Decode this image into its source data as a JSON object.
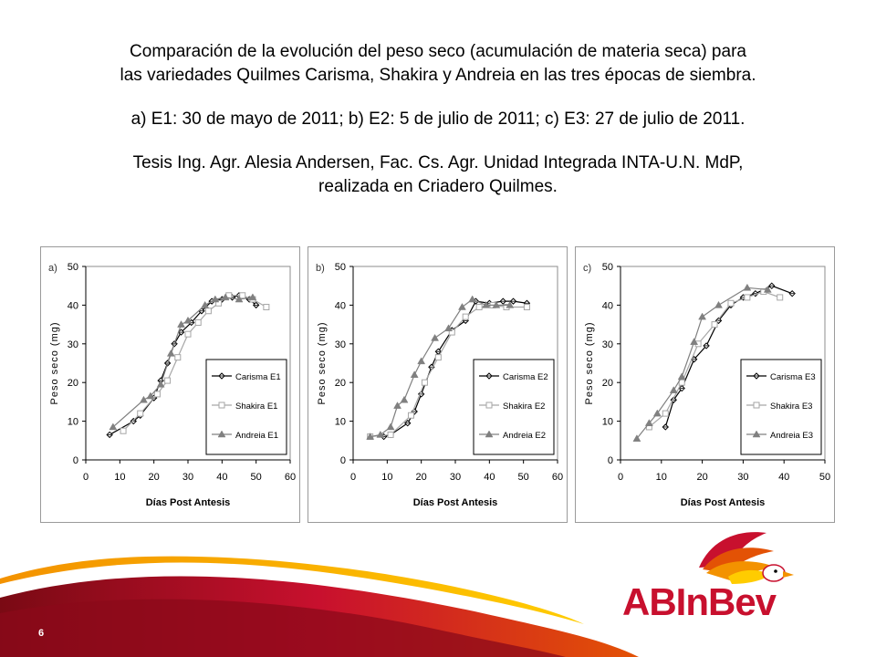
{
  "header": {
    "line1": "Comparación de la evolución del peso seco (acumulación de materia seca) para",
    "line2": "las variedades Quilmes Carisma, Shakira y Andreia en las tres épocas de siembra.",
    "line3": "a) E1: 30 de mayo de 2011; b) E2: 5 de julio de 2011; c) E3: 27 de julio de 2011.",
    "line4": "Tesis Ing. Agr. Alesia Andersen, Fac. Cs. Agr. Unidad Integrada INTA-U.N. MdP,",
    "line5": "realizada en Criadero Quilmes."
  },
  "footer": {
    "page_number": "6",
    "logo_text": "ABInBev",
    "colors": {
      "red": "#c8102e",
      "dark_red": "#8b0a1a",
      "orange": "#f39200",
      "yellow": "#ffcc00"
    }
  },
  "chart_data": [
    {
      "type": "line",
      "panel_label": "a)",
      "xlabel": "Días Post Antesis",
      "ylabel": "Peso seco (mg)",
      "xlim": [
        0,
        60
      ],
      "ylim": [
        0,
        50
      ],
      "xticks": [
        "0",
        "10",
        "20",
        "30",
        "40",
        "50",
        "60"
      ],
      "yticks": [
        "0",
        "10",
        "20",
        "30",
        "40",
        "50"
      ],
      "legend_position": "bottom-right",
      "series": [
        {
          "name": "Carisma E1",
          "marker": "diamond",
          "color": "#000000",
          "x": [
            7,
            14,
            16,
            20,
            22,
            24,
            26,
            28,
            31,
            34,
            37,
            40,
            43,
            45,
            48,
            50
          ],
          "y": [
            6.5,
            10,
            11.5,
            16,
            20.5,
            25,
            30,
            33,
            35.5,
            38.5,
            41,
            41.5,
            42,
            42.5,
            41.5,
            40
          ]
        },
        {
          "name": "Shakira E1",
          "marker": "square",
          "color": "#a6a6a6",
          "x": [
            11,
            16,
            21,
            24,
            27,
            30,
            33,
            36,
            39,
            42,
            46,
            49,
            53
          ],
          "y": [
            7.5,
            12,
            17,
            20.5,
            26.5,
            32.5,
            35.5,
            38.5,
            40.5,
            42.5,
            42.5,
            41.5,
            39.5
          ]
        },
        {
          "name": "Andreia E1",
          "marker": "triangle",
          "color": "#808080",
          "x": [
            8,
            17,
            19,
            22,
            25,
            28,
            30,
            35,
            38,
            41,
            45,
            49
          ],
          "y": [
            8.5,
            15.5,
            16.5,
            19.5,
            27.5,
            35,
            36,
            40,
            41.5,
            42,
            41.5,
            42
          ]
        }
      ]
    },
    {
      "type": "line",
      "panel_label": "b)",
      "xlabel": "Días Post Antesis",
      "ylabel": "Peso seco (mg)",
      "xlim": [
        0,
        60
      ],
      "ylim": [
        0,
        50
      ],
      "xticks": [
        "0",
        "10",
        "20",
        "30",
        "40",
        "50",
        "60"
      ],
      "yticks": [
        "0",
        "10",
        "20",
        "30",
        "40",
        "50"
      ],
      "legend_position": "bottom-right",
      "series": [
        {
          "name": "Carisma E2",
          "marker": "diamond",
          "color": "#000000",
          "x": [
            9,
            11,
            16,
            18,
            20,
            23,
            25,
            29,
            33,
            36,
            40,
            44,
            47,
            51
          ],
          "y": [
            6,
            6.5,
            9.5,
            12.5,
            17,
            24,
            28,
            33.5,
            36,
            41,
            40.5,
            41,
            41,
            40.5
          ]
        },
        {
          "name": "Shakira E2",
          "marker": "square",
          "color": "#a6a6a6",
          "x": [
            5,
            11,
            17,
            21,
            25,
            29,
            33,
            37,
            41,
            45,
            51
          ],
          "y": [
            6,
            6.5,
            11.5,
            20,
            26.5,
            33,
            37,
            39.5,
            40,
            39.5,
            39.5
          ]
        },
        {
          "name": "Andreia E2",
          "marker": "triangle",
          "color": "#808080",
          "x": [
            5,
            8,
            11,
            13,
            15,
            18,
            20,
            24,
            28,
            32,
            35,
            39,
            42,
            46
          ],
          "y": [
            6,
            6.5,
            8.5,
            14,
            15.5,
            22,
            25.5,
            31.5,
            34,
            39.5,
            41.5,
            40,
            40,
            40
          ]
        }
      ]
    },
    {
      "type": "line",
      "panel_label": "c)",
      "xlabel": "Días Post Antesis",
      "ylabel": "Peso seco (mg)",
      "xlim": [
        0,
        50
      ],
      "ylim": [
        0,
        50
      ],
      "xticks": [
        "0",
        "10",
        "20",
        "30",
        "40",
        "50"
      ],
      "yticks": [
        "0",
        "10",
        "20",
        "30",
        "40",
        "50"
      ],
      "legend_position": "bottom-right",
      "series": [
        {
          "name": "Carisma E3",
          "marker": "diamond",
          "color": "#000000",
          "x": [
            11,
            13,
            15,
            18,
            21,
            24,
            27,
            30,
            33,
            37,
            42
          ],
          "y": [
            8.5,
            15.5,
            18.5,
            26,
            29.5,
            36,
            40,
            42,
            43,
            45,
            43
          ]
        },
        {
          "name": "Shakira E3",
          "marker": "square",
          "color": "#a6a6a6",
          "x": [
            7,
            11,
            15,
            19,
            23,
            27,
            31,
            35,
            39
          ],
          "y": [
            8.5,
            12,
            20,
            30,
            35,
            40.5,
            42,
            43.5,
            42
          ]
        },
        {
          "name": "Andreia E3",
          "marker": "triangle",
          "color": "#808080",
          "x": [
            4,
            7,
            9,
            13,
            15,
            18,
            20,
            24,
            31,
            36
          ],
          "y": [
            5.5,
            9.5,
            12,
            18,
            21.5,
            30.5,
            37,
            40,
            44.5,
            44
          ]
        }
      ]
    }
  ]
}
